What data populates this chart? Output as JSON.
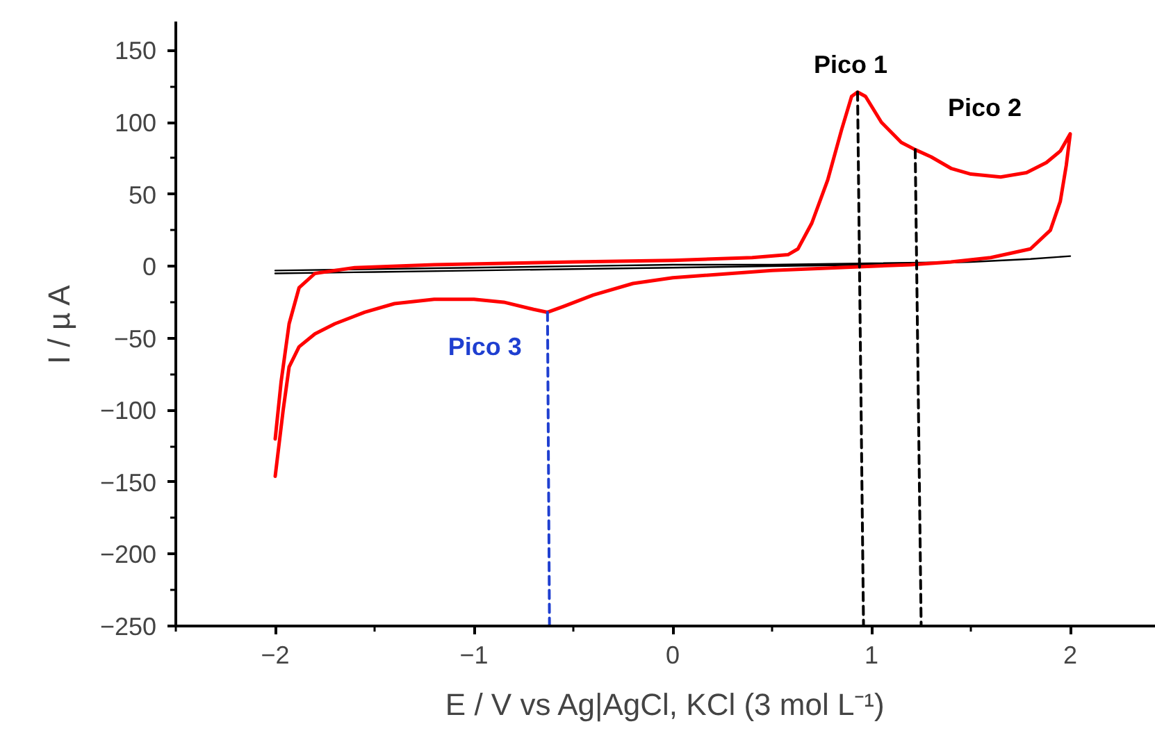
{
  "chart_data": {
    "type": "line",
    "xlabel": "E / V vs Ag|AgCl, KCl (3 mol L⁻¹)",
    "ylabel": "I / µ A",
    "xlim": [
      -2.5,
      2.43
    ],
    "ylim": [
      -250,
      170
    ],
    "xticks": [
      -2,
      -1,
      0,
      1,
      2
    ],
    "yticks": [
      -250,
      -200,
      -150,
      -100,
      -50,
      0,
      50,
      100,
      150
    ],
    "grid": false,
    "marker": "none",
    "series": [
      {
        "color": "#000000",
        "x": [
          -2.0,
          -1.5,
          -1.0,
          -0.5,
          0.0,
          0.5,
          1.0,
          1.5,
          1.8,
          2.0,
          1.8,
          1.5,
          1.0,
          0.5,
          0.0,
          -0.5,
          -1.0,
          -1.5,
          -2.0
        ],
        "values": [
          -3,
          -2,
          -1,
          0,
          1,
          1,
          2,
          3,
          5,
          7,
          5,
          3,
          1,
          0,
          -1,
          -2,
          -3,
          -4,
          -5
        ]
      },
      {
        "color": "#ff0000",
        "x": [
          -2.0,
          -1.97,
          -1.93,
          -1.88,
          -1.8,
          -1.6,
          -1.2,
          -0.5,
          0.0,
          0.4,
          0.58,
          0.63,
          0.7,
          0.78,
          0.85,
          0.9,
          0.93,
          0.97,
          1.05,
          1.15,
          1.22,
          1.3,
          1.4,
          1.5,
          1.65,
          1.78,
          1.88,
          1.95,
          2.0,
          1.98,
          1.95,
          1.9,
          1.8,
          1.6,
          1.4,
          1.2,
          1.0,
          0.5,
          0.0,
          -0.2,
          -0.4,
          -0.55,
          -0.63,
          -0.7,
          -0.85,
          -1.0,
          -1.2,
          -1.4,
          -1.55,
          -1.7,
          -1.8,
          -1.88,
          -1.93,
          -1.96,
          -2.0
        ],
        "values": [
          -120,
          -80,
          -40,
          -15,
          -5,
          -1,
          1,
          3,
          4,
          6,
          8,
          12,
          30,
          60,
          95,
          118,
          121,
          118,
          100,
          86,
          81,
          76,
          68,
          64,
          62,
          65,
          72,
          80,
          92,
          70,
          45,
          25,
          12,
          6,
          3,
          1,
          0,
          -3,
          -8,
          -12,
          -20,
          -28,
          -32,
          -30,
          -25,
          -23,
          -23,
          -26,
          -32,
          -40,
          -47,
          -56,
          -70,
          -100,
          -146
        ]
      },
      {
        "color": "#1f3fd0",
        "line_style": "dashed",
        "x": [
          -0.63,
          -0.62
        ],
        "values": [
          -32,
          -250
        ]
      },
      {
        "color": "#000000",
        "line_style": "dashed",
        "x": [
          0.93,
          0.96
        ],
        "values": [
          121,
          -250
        ]
      },
      {
        "color": "#000000",
        "line_style": "dashed",
        "x": [
          1.22,
          1.25
        ],
        "values": [
          81,
          -250
        ]
      }
    ],
    "annotations": [
      {
        "text": "Pico 1",
        "x": 0.93,
        "y": 121
      },
      {
        "text": "Pico 2",
        "x": 1.22,
        "y": 81
      },
      {
        "text": "Pico 3",
        "x": -0.63,
        "y": -32
      }
    ]
  }
}
